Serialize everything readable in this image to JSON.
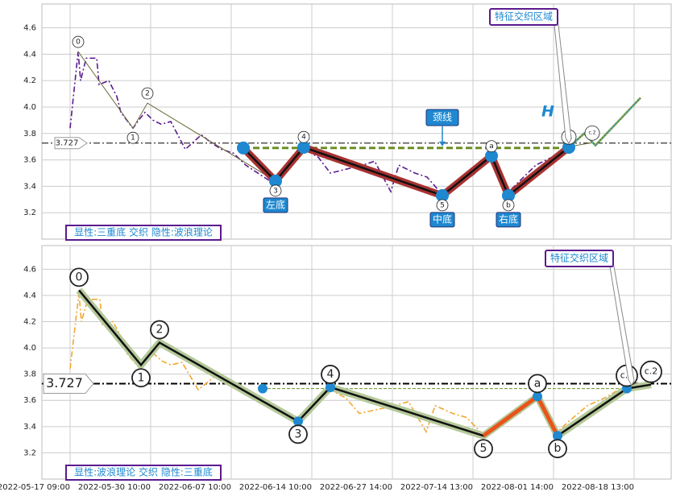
{
  "chart_data": [
    {
      "type": "line",
      "ylim": [
        3.0,
        4.78
      ],
      "yticks": [
        3.2,
        3.4,
        3.6,
        3.8,
        {
          "value": 4,
          "label": "4.0"
        },
        4.2,
        4.4,
        4.6
      ],
      "xlim": [
        -3.5,
        74.6
      ],
      "grid": true,
      "series": [
        {
          "color": "#5b1a8e",
          "x": [
            0,
            1,
            1.3,
            2,
            3.3,
            3.6,
            4.8,
            5.8,
            6.3,
            7.8,
            8.5,
            9.3,
            10.3,
            11.3,
            12.5,
            14.3,
            16.3,
            17.5,
            18.8,
            20.3,
            21.8,
            23.3,
            25.3,
            27.3,
            29.1,
            30.8,
            32.3,
            34.3,
            36.3,
            37.8,
            39.8,
            40.8,
            42.8,
            44.3,
            46.3,
            48.3,
            50.3,
            52.1,
            53.3,
            54.3,
            55.8,
            57.8,
            59.8,
            61.8
          ],
          "values": [
            3.84,
            4.42,
            4.2,
            4.37,
            4.37,
            4.17,
            4.2,
            4.08,
            3.96,
            3.84,
            3.9,
            3.96,
            3.9,
            3.87,
            3.89,
            3.68,
            3.79,
            3.73,
            3.68,
            3.65,
            3.56,
            3.5,
            3.42,
            3.56,
            3.68,
            3.62,
            3.5,
            3.53,
            3.56,
            3.59,
            3.36,
            3.56,
            3.5,
            3.47,
            3.33,
            3.41,
            3.5,
            3.62,
            3.44,
            3.35,
            3.44,
            3.56,
            3.62,
            3.7
          ]
        }
      ],
      "ref_line": 3.727,
      "waves": {
        "color": "#6b6b3a",
        "labels": [
          "0",
          "1",
          "2",
          "3",
          "4",
          "5",
          "a",
          "b",
          "c.1",
          "c.2"
        ],
        "x": [
          1,
          7.8,
          9.6,
          25.5,
          29,
          46.2,
          52.3,
          54.4,
          61.9,
          64.8
        ],
        "values": [
          4.42,
          3.84,
          4.03,
          3.44,
          3.7,
          3.33,
          3.63,
          3.33,
          3.7,
          3.73
        ]
      },
      "pattern": {
        "color": "#a83232",
        "dot_color": "#1e88d0",
        "x": [
          21.5,
          25.5,
          29,
          46.2,
          52.3,
          54.4,
          61.9
        ],
        "values": [
          3.69,
          3.44,
          3.695,
          3.33,
          3.63,
          3.33,
          3.695
        ],
        "labels": [
          "左底",
          "中底",
          "右底"
        ]
      },
      "neckline": {
        "value": 3.69,
        "color": "#6a8e23",
        "label": "颈线"
      },
      "projection": {
        "color": "#6a8e23",
        "x": [
          61.9,
          63.8,
          65.2,
          70.8
        ],
        "values": [
          3.695,
          3.8,
          3.71,
          4.07
        ]
      },
      "annotation": "特征交织区域",
      "marker": "H",
      "footer": "显性:三重底 交织 隐性:波浪理论"
    },
    {
      "type": "line",
      "ylim": [
        3.0,
        4.78
      ],
      "yticks": [
        3.2,
        3.4,
        3.6,
        3.8,
        {
          "value": 4,
          "label": "4.0"
        },
        4.2,
        4.4,
        4.6
      ],
      "xlim": [
        -3.5,
        74.6
      ],
      "grid": true,
      "xticks": [
        {
          "value": 0,
          "label": "2022-05-17 09:00"
        },
        {
          "value": 10,
          "label": "2022-05-30 10:00"
        },
        {
          "value": 20,
          "label": "2022-06-07 10:00"
        },
        {
          "value": 30,
          "label": "2022-06-14 10:00"
        },
        {
          "value": 40,
          "label": "2022-06-27 14:00"
        },
        {
          "value": 50,
          "label": "2022-07-14 13:00"
        },
        {
          "value": 60,
          "label": "2022-08-01 14:00"
        },
        {
          "value": 70,
          "label": "2022-08-18 13:00"
        }
      ],
      "series": [
        {
          "color": "#f0a830",
          "x": [
            0,
            1.1,
            1.4,
            2.2,
            3.7,
            4,
            5.3,
            6.4,
            7,
            8.7,
            9.4,
            10.3,
            11.4,
            12.5,
            13.9,
            15.9,
            18.1,
            19.4,
            20.9,
            22.5,
            24.2,
            25.9,
            28.1,
            30.3,
            32.3,
            34.2,
            35.9,
            38.1,
            40.3,
            42,
            44.2,
            45.3,
            47.5,
            49.2,
            51.4,
            53.6,
            55.8,
            57.8,
            59.2,
            60.3,
            61.9,
            64.2,
            66.4,
            68.6
          ],
          "values": [
            3.84,
            4.42,
            4.2,
            4.37,
            4.37,
            4.17,
            4.2,
            4.08,
            3.96,
            3.84,
            3.9,
            3.96,
            3.9,
            3.87,
            3.89,
            3.68,
            3.79,
            3.73,
            3.68,
            3.65,
            3.56,
            3.5,
            3.42,
            3.56,
            3.68,
            3.62,
            3.5,
            3.53,
            3.56,
            3.59,
            3.36,
            3.56,
            3.5,
            3.47,
            3.33,
            3.41,
            3.5,
            3.62,
            3.44,
            3.35,
            3.44,
            3.56,
            3.62,
            3.7
          ]
        }
      ],
      "ref_line": 3.727,
      "waves": {
        "color": "#111111",
        "highlight": "#b5c99a",
        "labels": [
          "0",
          "1",
          "2",
          "3",
          "4",
          "5",
          "a",
          "b",
          "c.1",
          "c.2"
        ],
        "x": [
          1.1,
          8.8,
          11.1,
          28.3,
          32.3,
          51.3,
          58,
          60.5,
          69.1,
          72.1
        ],
        "values": [
          4.44,
          3.87,
          4.04,
          3.44,
          3.7,
          3.33,
          3.63,
          3.33,
          3.69,
          3.72
        ]
      },
      "pattern": {
        "dot_color": "#1e88d0",
        "x": [
          23.9,
          28.3,
          32.3,
          58,
          60.5,
          69.1
        ],
        "values": [
          3.69,
          3.44,
          3.7,
          3.63,
          3.33,
          3.69
        ]
      },
      "segment": {
        "color": "#e8541a",
        "x": [
          51.3,
          58,
          60.5
        ],
        "values": [
          3.33,
          3.63,
          3.33
        ]
      },
      "neckline": {
        "value": 3.69,
        "color": "#6a8e23"
      },
      "annotation": "特征交织区域",
      "footer": "显性:波浪理论 交织 隐性:三重底"
    }
  ]
}
